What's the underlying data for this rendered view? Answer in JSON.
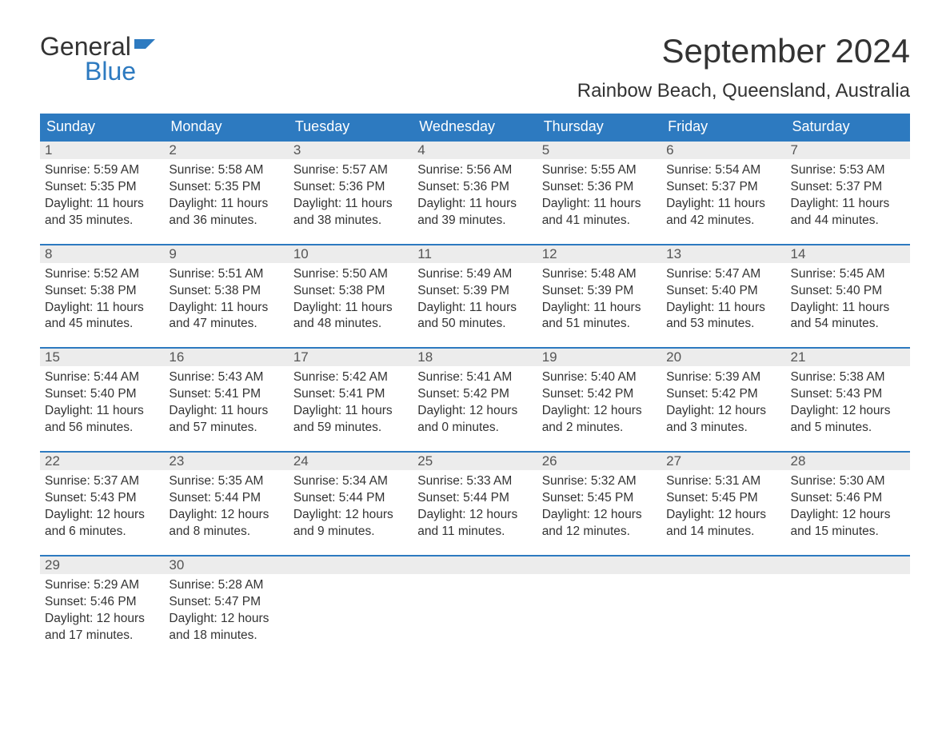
{
  "brand": {
    "word1": "General",
    "word2": "Blue"
  },
  "colors": {
    "brand_blue": "#2d7ac0",
    "header_bg": "#2d7ac0",
    "header_text": "#ffffff",
    "daynum_bg": "#ececec",
    "daynum_border": "#2d7ac0",
    "text": "#333333",
    "page_bg": "#ffffff"
  },
  "title": "September 2024",
  "location": "Rainbow Beach, Queensland, Australia",
  "weekdays": [
    "Sunday",
    "Monday",
    "Tuesday",
    "Wednesday",
    "Thursday",
    "Friday",
    "Saturday"
  ],
  "layout": {
    "cols": 7,
    "rows": 5,
    "first_weekday_index": 0
  },
  "days": [
    {
      "n": 1,
      "sunrise": "5:59 AM",
      "sunset": "5:35 PM",
      "daylight1": "11 hours",
      "daylight2": "and 35 minutes."
    },
    {
      "n": 2,
      "sunrise": "5:58 AM",
      "sunset": "5:35 PM",
      "daylight1": "11 hours",
      "daylight2": "and 36 minutes."
    },
    {
      "n": 3,
      "sunrise": "5:57 AM",
      "sunset": "5:36 PM",
      "daylight1": "11 hours",
      "daylight2": "and 38 minutes."
    },
    {
      "n": 4,
      "sunrise": "5:56 AM",
      "sunset": "5:36 PM",
      "daylight1": "11 hours",
      "daylight2": "and 39 minutes."
    },
    {
      "n": 5,
      "sunrise": "5:55 AM",
      "sunset": "5:36 PM",
      "daylight1": "11 hours",
      "daylight2": "and 41 minutes."
    },
    {
      "n": 6,
      "sunrise": "5:54 AM",
      "sunset": "5:37 PM",
      "daylight1": "11 hours",
      "daylight2": "and 42 minutes."
    },
    {
      "n": 7,
      "sunrise": "5:53 AM",
      "sunset": "5:37 PM",
      "daylight1": "11 hours",
      "daylight2": "and 44 minutes."
    },
    {
      "n": 8,
      "sunrise": "5:52 AM",
      "sunset": "5:38 PM",
      "daylight1": "11 hours",
      "daylight2": "and 45 minutes."
    },
    {
      "n": 9,
      "sunrise": "5:51 AM",
      "sunset": "5:38 PM",
      "daylight1": "11 hours",
      "daylight2": "and 47 minutes."
    },
    {
      "n": 10,
      "sunrise": "5:50 AM",
      "sunset": "5:38 PM",
      "daylight1": "11 hours",
      "daylight2": "and 48 minutes."
    },
    {
      "n": 11,
      "sunrise": "5:49 AM",
      "sunset": "5:39 PM",
      "daylight1": "11 hours",
      "daylight2": "and 50 minutes."
    },
    {
      "n": 12,
      "sunrise": "5:48 AM",
      "sunset": "5:39 PM",
      "daylight1": "11 hours",
      "daylight2": "and 51 minutes."
    },
    {
      "n": 13,
      "sunrise": "5:47 AM",
      "sunset": "5:40 PM",
      "daylight1": "11 hours",
      "daylight2": "and 53 minutes."
    },
    {
      "n": 14,
      "sunrise": "5:45 AM",
      "sunset": "5:40 PM",
      "daylight1": "11 hours",
      "daylight2": "and 54 minutes."
    },
    {
      "n": 15,
      "sunrise": "5:44 AM",
      "sunset": "5:40 PM",
      "daylight1": "11 hours",
      "daylight2": "and 56 minutes."
    },
    {
      "n": 16,
      "sunrise": "5:43 AM",
      "sunset": "5:41 PM",
      "daylight1": "11 hours",
      "daylight2": "and 57 minutes."
    },
    {
      "n": 17,
      "sunrise": "5:42 AM",
      "sunset": "5:41 PM",
      "daylight1": "11 hours",
      "daylight2": "and 59 minutes."
    },
    {
      "n": 18,
      "sunrise": "5:41 AM",
      "sunset": "5:42 PM",
      "daylight1": "12 hours",
      "daylight2": "and 0 minutes."
    },
    {
      "n": 19,
      "sunrise": "5:40 AM",
      "sunset": "5:42 PM",
      "daylight1": "12 hours",
      "daylight2": "and 2 minutes."
    },
    {
      "n": 20,
      "sunrise": "5:39 AM",
      "sunset": "5:42 PM",
      "daylight1": "12 hours",
      "daylight2": "and 3 minutes."
    },
    {
      "n": 21,
      "sunrise": "5:38 AM",
      "sunset": "5:43 PM",
      "daylight1": "12 hours",
      "daylight2": "and 5 minutes."
    },
    {
      "n": 22,
      "sunrise": "5:37 AM",
      "sunset": "5:43 PM",
      "daylight1": "12 hours",
      "daylight2": "and 6 minutes."
    },
    {
      "n": 23,
      "sunrise": "5:35 AM",
      "sunset": "5:44 PM",
      "daylight1": "12 hours",
      "daylight2": "and 8 minutes."
    },
    {
      "n": 24,
      "sunrise": "5:34 AM",
      "sunset": "5:44 PM",
      "daylight1": "12 hours",
      "daylight2": "and 9 minutes."
    },
    {
      "n": 25,
      "sunrise": "5:33 AM",
      "sunset": "5:44 PM",
      "daylight1": "12 hours",
      "daylight2": "and 11 minutes."
    },
    {
      "n": 26,
      "sunrise": "5:32 AM",
      "sunset": "5:45 PM",
      "daylight1": "12 hours",
      "daylight2": "and 12 minutes."
    },
    {
      "n": 27,
      "sunrise": "5:31 AM",
      "sunset": "5:45 PM",
      "daylight1": "12 hours",
      "daylight2": "and 14 minutes."
    },
    {
      "n": 28,
      "sunrise": "5:30 AM",
      "sunset": "5:46 PM",
      "daylight1": "12 hours",
      "daylight2": "and 15 minutes."
    },
    {
      "n": 29,
      "sunrise": "5:29 AM",
      "sunset": "5:46 PM",
      "daylight1": "12 hours",
      "daylight2": "and 17 minutes."
    },
    {
      "n": 30,
      "sunrise": "5:28 AM",
      "sunset": "5:47 PM",
      "daylight1": "12 hours",
      "daylight2": "and 18 minutes."
    }
  ],
  "labels": {
    "sunrise_prefix": "Sunrise: ",
    "sunset_prefix": "Sunset: ",
    "daylight_prefix": "Daylight: "
  }
}
